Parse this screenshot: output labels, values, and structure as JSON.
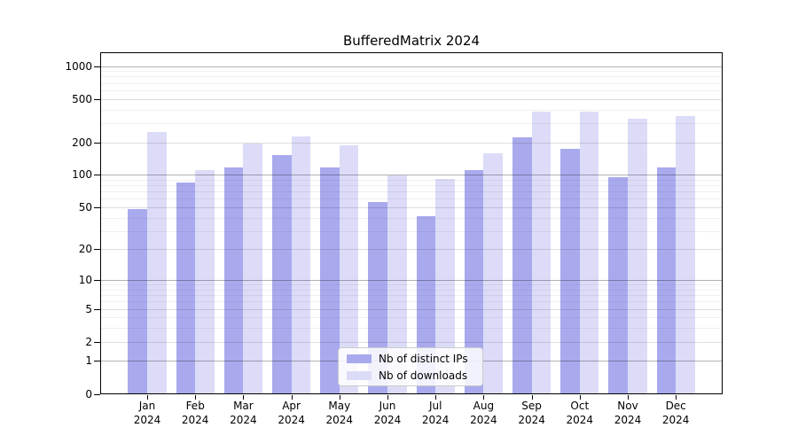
{
  "title": "BufferedMatrix 2024",
  "chart_data": {
    "type": "bar",
    "title": "BufferedMatrix 2024",
    "categories": [
      "Jan",
      "Feb",
      "Mar",
      "Apr",
      "May",
      "Jun",
      "Jul",
      "Aug",
      "Sep",
      "Oct",
      "Nov",
      "Dec"
    ],
    "category_year": "2024",
    "series": [
      {
        "name": "Nb of distinct IPs",
        "color": "#a9a9ee",
        "values": [
          48,
          85,
          116,
          152,
          117,
          56,
          41,
          111,
          220,
          174,
          95,
          116
        ]
      },
      {
        "name": "Nb of downloads",
        "color": "#dcdcf8",
        "values": [
          246,
          110,
          196,
          224,
          188,
          98,
          91,
          157,
          383,
          385,
          331,
          345
        ]
      }
    ],
    "xlabel": "",
    "ylabel": "",
    "y_ticks": [
      0,
      1,
      2,
      5,
      10,
      20,
      50,
      100,
      200,
      500,
      1000
    ],
    "y_decade_ticks": [
      1,
      10,
      100,
      1000
    ],
    "scale": "log10(1+x)",
    "ylim": [
      0,
      1300
    ],
    "grid": true,
    "legend_position": "lower center"
  },
  "colors": {
    "background": "#ffffff",
    "axis": "#000000",
    "grid_decade": "#adadad",
    "grid_major": "#dddddd",
    "grid_minor": "#efefef",
    "text": "#000000"
  }
}
